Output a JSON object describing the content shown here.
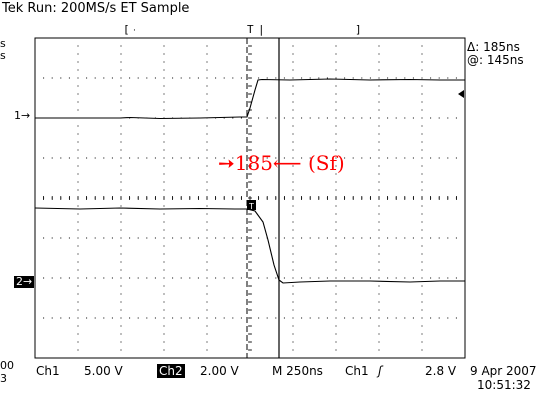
{
  "header": {
    "title": "Tek Run: 200MS/s ET Sample"
  },
  "cursor_readout": {
    "delta": "Δ: 185ns",
    "at": "@: 145ns"
  },
  "left_clip": {
    "top_a": "s",
    "top_b": "s",
    "bottom_a": "00",
    "bottom_b": "3"
  },
  "channel_markers": {
    "ch1": "1→",
    "ch2": "2→"
  },
  "annotation": {
    "text": "➙185⟵ (Sf)",
    "color": "#ff0000"
  },
  "footer": {
    "ch1_label": "Ch1",
    "ch1_scale": "5.00 V",
    "ch2_label": "Ch2",
    "ch2_scale": "2.00 V",
    "timebase": "M  250ns",
    "trigger_source": "Ch1",
    "trigger_slope": "ʃ",
    "trigger_level": "2.8 V",
    "date": "9 Apr 2007",
    "time": "10:51:32"
  },
  "colors": {
    "background": "#ffffff",
    "trace": "#000000",
    "grid": "#000000",
    "annotation": "#ff0000"
  }
}
